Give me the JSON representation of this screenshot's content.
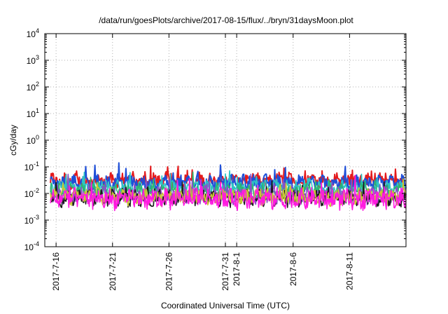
{
  "chart_data": {
    "type": "line",
    "title": "/data/run/goesPlots/archive/2017-08-15/flux/../bryn/31daysMoon.plot",
    "xlabel": "Coordinated Universal Time (UTC)",
    "ylabel": "cGy/day",
    "yscale": "log",
    "ylim": [
      0.0001,
      10000
    ],
    "xlim": [
      "2017-07-15",
      "2017-08-16"
    ],
    "y_ticks": [
      {
        "value": 0.0001,
        "base": "10",
        "exp": "-4"
      },
      {
        "value": 0.001,
        "base": "10",
        "exp": "-3"
      },
      {
        "value": 0.01,
        "base": "10",
        "exp": "-2"
      },
      {
        "value": 0.1,
        "base": "10",
        "exp": "-1"
      },
      {
        "value": 1,
        "base": "10",
        "exp": "0"
      },
      {
        "value": 10,
        "base": "10",
        "exp": "1"
      },
      {
        "value": 100,
        "base": "10",
        "exp": "2"
      },
      {
        "value": 1000,
        "base": "10",
        "exp": "3"
      },
      {
        "value": 10000,
        "base": "10",
        "exp": "4"
      }
    ],
    "x_ticks": [
      {
        "date": "2017-07-16",
        "label": "2017-7-16"
      },
      {
        "date": "2017-07-21",
        "label": "2017-7-21"
      },
      {
        "date": "2017-07-26",
        "label": "2017-7-26"
      },
      {
        "date": "2017-07-31",
        "label": "2017-7-31"
      },
      {
        "date": "2017-08-01",
        "label": "2017-8-1"
      },
      {
        "date": "2017-08-06",
        "label": "2017-8-6"
      },
      {
        "date": "2017-08-11",
        "label": "2017-8-11"
      }
    ],
    "grid": true,
    "legend": "none",
    "series": [
      {
        "color": "#e41a1c",
        "base": 0.03,
        "amp": 0.45
      },
      {
        "color": "#1f4fd8",
        "base": 0.025,
        "amp": 0.45
      },
      {
        "color": "#2ec4c4",
        "base": 0.016,
        "amp": 0.4
      },
      {
        "color": "#2bb673",
        "base": 0.012,
        "amp": 0.4
      },
      {
        "color": "#8c4fc8",
        "base": 0.0085,
        "amp": 0.5
      },
      {
        "color": "#1a1a1a",
        "base": 0.0065,
        "amp": 0.45
      },
      {
        "color": "#c8c832",
        "base": 0.0075,
        "amp": 0.5
      },
      {
        "color": "#ff1ae0",
        "base": 0.0062,
        "amp": 0.65
      }
    ]
  }
}
